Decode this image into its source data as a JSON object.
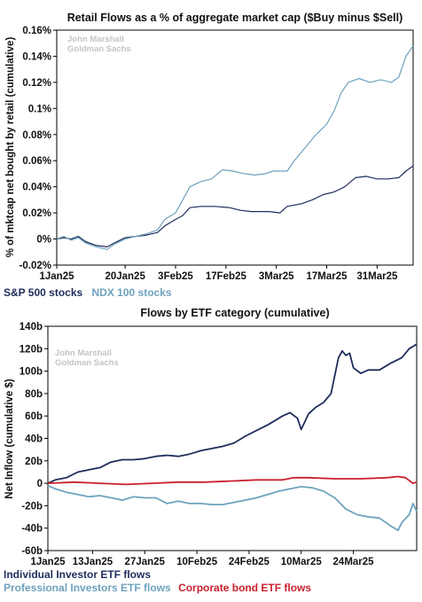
{
  "chart_data": [
    {
      "type": "line",
      "title": "Retail Flows as a % of aggregate market cap ($Buy minus $Sell)",
      "watermark": [
        "John Marshall",
        "Goldman Sachs"
      ],
      "xlabel": "",
      "ylabel": "% of mktcap net bought by retail (cumulative)",
      "x_ticks": [
        "1Jan25",
        "20Jan25",
        "3Feb25",
        "17Feb25",
        "3Mar25",
        "17Mar25",
        "31Mar25"
      ],
      "x_domain": [
        "2025-01-01",
        "2025-04-10"
      ],
      "y_ticks": [
        "-0.02%",
        "0%",
        "0.02%",
        "0.04%",
        "0.06%",
        "0.08%",
        "0.1%",
        "0.12%",
        "0.14%",
        "0.16%"
      ],
      "ylim": [
        -0.02,
        0.16
      ],
      "y_unit": "%",
      "grid": false,
      "series": [
        {
          "name": "S&P 500 stocks",
          "color": "#1f2d5c",
          "points": [
            [
              "2025-01-01",
              0.0
            ],
            [
              "2025-01-03",
              0.001
            ],
            [
              "2025-01-05",
              0.0
            ],
            [
              "2025-01-07",
              0.002
            ],
            [
              "2025-01-09",
              -0.002
            ],
            [
              "2025-01-12",
              -0.005
            ],
            [
              "2025-01-15",
              -0.006
            ],
            [
              "2025-01-17",
              -0.003
            ],
            [
              "2025-01-20",
              0.001
            ],
            [
              "2025-01-23",
              0.002
            ],
            [
              "2025-01-26",
              0.003
            ],
            [
              "2025-01-29",
              0.005
            ],
            [
              "2025-01-31",
              0.01
            ],
            [
              "2025-02-03",
              0.015
            ],
            [
              "2025-02-05",
              0.018
            ],
            [
              "2025-02-07",
              0.024
            ],
            [
              "2025-02-10",
              0.025
            ],
            [
              "2025-02-14",
              0.025
            ],
            [
              "2025-02-18",
              0.024
            ],
            [
              "2025-02-21",
              0.022
            ],
            [
              "2025-02-24",
              0.021
            ],
            [
              "2025-02-27",
              0.021
            ],
            [
              "2025-03-01",
              0.021
            ],
            [
              "2025-03-04",
              0.02
            ],
            [
              "2025-03-06",
              0.025
            ],
            [
              "2025-03-10",
              0.027
            ],
            [
              "2025-03-13",
              0.03
            ],
            [
              "2025-03-16",
              0.034
            ],
            [
              "2025-03-19",
              0.036
            ],
            [
              "2025-03-22",
              0.04
            ],
            [
              "2025-03-25",
              0.047
            ],
            [
              "2025-03-28",
              0.048
            ],
            [
              "2025-03-31",
              0.046
            ],
            [
              "2025-04-03",
              0.046
            ],
            [
              "2025-04-06",
              0.047
            ],
            [
              "2025-04-08",
              0.052
            ],
            [
              "2025-04-10",
              0.056
            ]
          ]
        },
        {
          "name": "NDX 100 stocks",
          "color": "#6ea2bd",
          "points": [
            [
              "2025-01-01",
              0.0
            ],
            [
              "2025-01-03",
              0.002
            ],
            [
              "2025-01-05",
              -0.001
            ],
            [
              "2025-01-07",
              0.001
            ],
            [
              "2025-01-09",
              -0.003
            ],
            [
              "2025-01-12",
              -0.006
            ],
            [
              "2025-01-15",
              -0.008
            ],
            [
              "2025-01-17",
              -0.004
            ],
            [
              "2025-01-20",
              0.0
            ],
            [
              "2025-01-23",
              0.002
            ],
            [
              "2025-01-26",
              0.004
            ],
            [
              "2025-01-29",
              0.007
            ],
            [
              "2025-01-31",
              0.015
            ],
            [
              "2025-02-03",
              0.02
            ],
            [
              "2025-02-05",
              0.03
            ],
            [
              "2025-02-07",
              0.04
            ],
            [
              "2025-02-10",
              0.044
            ],
            [
              "2025-02-13",
              0.046
            ],
            [
              "2025-02-16",
              0.053
            ],
            [
              "2025-02-19",
              0.052
            ],
            [
              "2025-02-22",
              0.05
            ],
            [
              "2025-02-25",
              0.049
            ],
            [
              "2025-02-28",
              0.05
            ],
            [
              "2025-03-02",
              0.052
            ],
            [
              "2025-03-04",
              0.052
            ],
            [
              "2025-03-06",
              0.052
            ],
            [
              "2025-03-08",
              0.06
            ],
            [
              "2025-03-11",
              0.07
            ],
            [
              "2025-03-14",
              0.08
            ],
            [
              "2025-03-17",
              0.088
            ],
            [
              "2025-03-19",
              0.098
            ],
            [
              "2025-03-21",
              0.112
            ],
            [
              "2025-03-23",
              0.12
            ],
            [
              "2025-03-26",
              0.123
            ],
            [
              "2025-03-29",
              0.12
            ],
            [
              "2025-04-01",
              0.122
            ],
            [
              "2025-04-04",
              0.12
            ],
            [
              "2025-04-06",
              0.124
            ],
            [
              "2025-04-08",
              0.14
            ],
            [
              "2025-04-10",
              0.148
            ]
          ]
        }
      ],
      "legend": "below",
      "legend_items": [
        "S&P 500 stocks",
        "NDX 100 stocks"
      ]
    },
    {
      "type": "line",
      "title": "Flows by ETF category (cumulative)",
      "watermark": [
        "John Marshall",
        "Goldman Sachs"
      ],
      "xlabel": "",
      "ylabel": "Net Inflow (cumulative $)",
      "x_ticks": [
        "1Jan25",
        "13Jan25",
        "27Jan25",
        "10Feb25",
        "24Feb25",
        "10Mar25",
        "24Mar25"
      ],
      "x_domain": [
        "2025-01-01",
        "2025-04-10"
      ],
      "y_ticks": [
        "-60b",
        "-40b",
        "-20b",
        "0",
        "20b",
        "40b",
        "60b",
        "80b",
        "100b",
        "120b",
        "140b"
      ],
      "ylim": [
        -60,
        140
      ],
      "y_unit": "b",
      "grid": false,
      "series": [
        {
          "name": "Individual Investor ETF flows",
          "color": "#1f2d5c",
          "points": [
            [
              "2025-01-01",
              0
            ],
            [
              "2025-01-03",
              3
            ],
            [
              "2025-01-06",
              5
            ],
            [
              "2025-01-09",
              10
            ],
            [
              "2025-01-12",
              12
            ],
            [
              "2025-01-15",
              14
            ],
            [
              "2025-01-18",
              19
            ],
            [
              "2025-01-21",
              21
            ],
            [
              "2025-01-24",
              21
            ],
            [
              "2025-01-27",
              22
            ],
            [
              "2025-01-30",
              24
            ],
            [
              "2025-02-02",
              25
            ],
            [
              "2025-02-05",
              24
            ],
            [
              "2025-02-08",
              26
            ],
            [
              "2025-02-11",
              29
            ],
            [
              "2025-02-14",
              31
            ],
            [
              "2025-02-17",
              33
            ],
            [
              "2025-02-20",
              36
            ],
            [
              "2025-02-23",
              42
            ],
            [
              "2025-02-26",
              47
            ],
            [
              "2025-03-01",
              52
            ],
            [
              "2025-03-03",
              56
            ],
            [
              "2025-03-05",
              60
            ],
            [
              "2025-03-07",
              63
            ],
            [
              "2025-03-09",
              58
            ],
            [
              "2025-03-10",
              48
            ],
            [
              "2025-03-12",
              62
            ],
            [
              "2025-03-14",
              68
            ],
            [
              "2025-03-16",
              72
            ],
            [
              "2025-03-18",
              80
            ],
            [
              "2025-03-20",
              112
            ],
            [
              "2025-03-21",
              118
            ],
            [
              "2025-03-22",
              114
            ],
            [
              "2025-03-23",
              116
            ],
            [
              "2025-03-24",
              103
            ],
            [
              "2025-03-26",
              98
            ],
            [
              "2025-03-28",
              101
            ],
            [
              "2025-03-31",
              101
            ],
            [
              "2025-04-03",
              107
            ],
            [
              "2025-04-06",
              112
            ],
            [
              "2025-04-08",
              120
            ],
            [
              "2025-04-10",
              124
            ]
          ]
        },
        {
          "name": "Professional Investors ETF flows",
          "color": "#6ea2bd",
          "points": [
            [
              "2025-01-01",
              -2
            ],
            [
              "2025-01-03",
              -5
            ],
            [
              "2025-01-06",
              -8
            ],
            [
              "2025-01-09",
              -10
            ],
            [
              "2025-01-12",
              -12
            ],
            [
              "2025-01-15",
              -11
            ],
            [
              "2025-01-18",
              -13
            ],
            [
              "2025-01-21",
              -15
            ],
            [
              "2025-01-24",
              -12
            ],
            [
              "2025-01-27",
              -13
            ],
            [
              "2025-01-30",
              -13
            ],
            [
              "2025-02-02",
              -18
            ],
            [
              "2025-02-05",
              -16
            ],
            [
              "2025-02-08",
              -18
            ],
            [
              "2025-02-11",
              -18
            ],
            [
              "2025-02-14",
              -19
            ],
            [
              "2025-02-17",
              -19
            ],
            [
              "2025-02-20",
              -17
            ],
            [
              "2025-02-23",
              -15
            ],
            [
              "2025-02-26",
              -13
            ],
            [
              "2025-03-01",
              -10
            ],
            [
              "2025-03-04",
              -7
            ],
            [
              "2025-03-07",
              -5
            ],
            [
              "2025-03-10",
              -3
            ],
            [
              "2025-03-13",
              -4
            ],
            [
              "2025-03-16",
              -7
            ],
            [
              "2025-03-19",
              -13
            ],
            [
              "2025-03-22",
              -23
            ],
            [
              "2025-03-25",
              -28
            ],
            [
              "2025-03-28",
              -30
            ],
            [
              "2025-03-31",
              -31
            ],
            [
              "2025-04-03",
              -38
            ],
            [
              "2025-04-05",
              -42
            ],
            [
              "2025-04-06",
              -35
            ],
            [
              "2025-04-08",
              -28
            ],
            [
              "2025-04-09",
              -18
            ],
            [
              "2025-04-10",
              -25
            ]
          ]
        },
        {
          "name": "Corporate bond ETF flows",
          "color": "#c8202d",
          "points": [
            [
              "2025-01-01",
              0
            ],
            [
              "2025-01-08",
              1
            ],
            [
              "2025-01-15",
              0
            ],
            [
              "2025-01-22",
              -1
            ],
            [
              "2025-01-29",
              0
            ],
            [
              "2025-02-05",
              1
            ],
            [
              "2025-02-12",
              1
            ],
            [
              "2025-02-19",
              2
            ],
            [
              "2025-02-26",
              3
            ],
            [
              "2025-03-05",
              3
            ],
            [
              "2025-03-08",
              5
            ],
            [
              "2025-03-12",
              5
            ],
            [
              "2025-03-19",
              4
            ],
            [
              "2025-03-26",
              4
            ],
            [
              "2025-04-02",
              5
            ],
            [
              "2025-04-05",
              6
            ],
            [
              "2025-04-07",
              5
            ],
            [
              "2025-04-09",
              0
            ],
            [
              "2025-04-10",
              1
            ]
          ]
        }
      ],
      "legend": "below",
      "legend_items": [
        "Individual Investor ETF flows",
        "Professional Investors ETF flows",
        "Corporate bond ETF flows"
      ]
    }
  ]
}
